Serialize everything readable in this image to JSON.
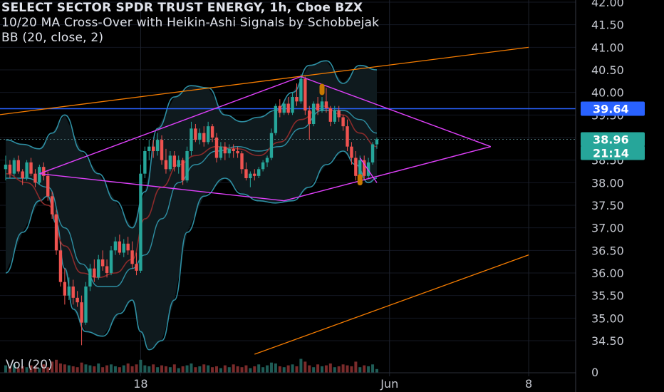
{
  "header": {
    "symbol_line": "SELECT SECTOR SPDR TRUST ENERGY, 1h, Cboe BZX",
    "indicator_line": "10/20 MA Cross-Over with Heikin-Ashi Signals by Schobbejak",
    "bb_line": "BB (20, close, 2)",
    "volume_label": "Vol (20)"
  },
  "colors": {
    "up": "#26a69a",
    "down": "#ef5350",
    "bb": "#2e8fa3",
    "ma": "#8b2a2a",
    "trendline_orange": "#f57c00",
    "diamond": "#e040fb",
    "level_line": "#2962ff",
    "price_badge": "#26a69a",
    "level_badge": "#2962ff"
  },
  "chart_data": {
    "type": "candlestick",
    "y_axis": {
      "ticks": [
        "34.50",
        "35.00",
        "35.50",
        "36.00",
        "36.50",
        "37.00",
        "37.50",
        "38.00",
        "38.50",
        "39.00",
        "39.50",
        "40.00",
        "40.50",
        "41.00",
        "41.50",
        "42.00"
      ],
      "range": [
        34.0,
        42.0
      ]
    },
    "x_axis": {
      "ticks": [
        "18",
        "Jun",
        "8"
      ]
    },
    "volume_axis_tick": "0",
    "price_badges": [
      {
        "label": "39.64",
        "value": 39.64,
        "color": "#2962ff"
      },
      {
        "label": "38.96",
        "value": 38.96,
        "color": "#26a69a"
      },
      {
        "label": "21:14",
        "value": 38.66,
        "color": "#26a69a"
      }
    ],
    "horizontal_level": 39.64,
    "last_price": 38.96,
    "candles": [
      [
        38.3,
        38.6,
        38.05,
        38.4
      ],
      [
        38.4,
        38.5,
        38.1,
        38.2
      ],
      [
        38.2,
        38.55,
        38.15,
        38.5
      ],
      [
        38.5,
        38.6,
        38.2,
        38.25
      ],
      [
        38.25,
        38.3,
        37.95,
        38.1
      ],
      [
        38.1,
        38.5,
        38.05,
        38.45
      ],
      [
        38.45,
        38.55,
        38.15,
        38.2
      ],
      [
        38.2,
        38.3,
        37.9,
        38.0
      ],
      [
        38.0,
        38.4,
        37.95,
        38.35
      ],
      [
        38.35,
        38.45,
        38.05,
        38.15
      ],
      [
        38.15,
        38.25,
        37.6,
        37.7
      ],
      [
        37.7,
        37.8,
        37.2,
        37.3
      ],
      [
        37.3,
        37.4,
        36.4,
        36.5
      ],
      [
        36.5,
        36.7,
        35.7,
        35.8
      ],
      [
        35.8,
        36.1,
        35.3,
        35.5
      ],
      [
        35.5,
        35.9,
        35.4,
        35.7
      ],
      [
        35.7,
        35.85,
        35.3,
        35.45
      ],
      [
        35.45,
        35.6,
        35.25,
        35.35
      ],
      [
        35.35,
        35.5,
        34.4,
        34.9
      ],
      [
        34.9,
        35.8,
        34.85,
        35.7
      ],
      [
        35.7,
        36.2,
        35.6,
        36.1
      ],
      [
        36.1,
        36.3,
        35.8,
        35.9
      ],
      [
        35.9,
        36.4,
        35.85,
        36.3
      ],
      [
        36.3,
        36.5,
        36.05,
        36.15
      ],
      [
        36.15,
        36.3,
        35.9,
        36.0
      ],
      [
        36.0,
        36.6,
        35.95,
        36.5
      ],
      [
        36.5,
        36.8,
        36.4,
        36.7
      ],
      [
        36.7,
        36.85,
        36.4,
        36.45
      ],
      [
        36.45,
        36.75,
        36.35,
        36.65
      ],
      [
        36.65,
        36.8,
        36.4,
        36.5
      ],
      [
        36.5,
        36.7,
        36.1,
        36.2
      ],
      [
        36.2,
        36.45,
        35.95,
        36.05
      ],
      [
        36.05,
        38.4,
        36.0,
        38.2
      ],
      [
        38.2,
        38.8,
        38.1,
        38.7
      ],
      [
        38.7,
        38.95,
        38.5,
        38.8
      ],
      [
        38.8,
        38.95,
        38.55,
        38.7
      ],
      [
        38.7,
        39.1,
        38.6,
        38.95
      ],
      [
        38.95,
        39.05,
        38.4,
        38.5
      ],
      [
        38.5,
        38.75,
        38.2,
        38.3
      ],
      [
        38.3,
        38.7,
        38.25,
        38.6
      ],
      [
        38.6,
        38.7,
        38.25,
        38.35
      ],
      [
        38.35,
        38.6,
        38.2,
        38.5
      ],
      [
        38.5,
        38.55,
        37.95,
        38.05
      ],
      [
        38.05,
        38.8,
        38.0,
        38.7
      ],
      [
        38.7,
        39.35,
        38.6,
        39.2
      ],
      [
        39.2,
        39.3,
        38.9,
        38.95
      ],
      [
        38.95,
        39.2,
        38.85,
        39.1
      ],
      [
        39.1,
        39.25,
        38.8,
        38.9
      ],
      [
        38.9,
        39.35,
        38.85,
        39.25
      ],
      [
        39.25,
        39.3,
        38.9,
        39.0
      ],
      [
        39.0,
        39.1,
        38.45,
        38.55
      ],
      [
        38.55,
        38.9,
        38.5,
        38.8
      ],
      [
        38.8,
        38.9,
        38.5,
        38.65
      ],
      [
        38.65,
        38.85,
        38.55,
        38.75
      ],
      [
        38.75,
        38.85,
        38.55,
        38.7
      ],
      [
        38.7,
        38.8,
        38.55,
        38.65
      ],
      [
        38.65,
        38.7,
        38.2,
        38.3
      ],
      [
        38.3,
        38.45,
        38.05,
        38.1
      ],
      [
        38.1,
        38.25,
        37.9,
        38.2
      ],
      [
        38.2,
        38.3,
        38.05,
        38.15
      ],
      [
        38.15,
        38.35,
        38.1,
        38.3
      ],
      [
        38.3,
        38.5,
        38.25,
        38.45
      ],
      [
        38.45,
        38.6,
        38.35,
        38.55
      ],
      [
        38.55,
        39.2,
        38.5,
        39.1
      ],
      [
        39.1,
        39.75,
        39.05,
        39.7
      ],
      [
        39.7,
        39.85,
        39.45,
        39.55
      ],
      [
        39.55,
        39.8,
        39.5,
        39.75
      ],
      [
        39.75,
        39.9,
        39.5,
        39.55
      ],
      [
        39.55,
        40.0,
        39.5,
        39.9
      ],
      [
        39.9,
        40.2,
        39.7,
        39.8
      ],
      [
        39.8,
        40.4,
        39.75,
        40.3
      ],
      [
        40.3,
        40.35,
        39.5,
        39.6
      ],
      [
        39.6,
        39.7,
        38.95,
        39.3
      ],
      [
        39.3,
        39.8,
        39.25,
        39.75
      ],
      [
        39.75,
        39.9,
        39.5,
        39.6
      ],
      [
        39.6,
        39.9,
        39.55,
        39.8
      ],
      [
        39.8,
        40.1,
        39.55,
        39.65
      ],
      [
        39.65,
        39.7,
        39.25,
        39.35
      ],
      [
        39.35,
        39.7,
        39.3,
        39.6
      ],
      [
        39.6,
        39.7,
        39.35,
        39.45
      ],
      [
        39.45,
        39.5,
        39.15,
        39.25
      ],
      [
        39.25,
        39.4,
        38.7,
        38.8
      ],
      [
        38.8,
        38.9,
        38.4,
        38.55
      ],
      [
        38.55,
        38.7,
        38.05,
        38.15
      ],
      [
        38.15,
        38.6,
        38.1,
        38.5
      ],
      [
        38.5,
        38.6,
        38.05,
        38.15
      ],
      [
        38.15,
        38.55,
        38.1,
        38.45
      ],
      [
        38.45,
        38.9,
        38.4,
        38.85
      ],
      [
        38.85,
        39.0,
        38.75,
        38.96
      ]
    ],
    "volume": [
      8,
      6,
      9,
      5,
      7,
      6,
      8,
      7,
      5,
      9,
      6,
      12,
      14,
      10,
      9,
      8,
      7,
      6,
      11,
      9,
      8,
      7,
      10,
      6,
      8,
      9,
      7,
      6,
      8,
      10,
      7,
      9,
      14,
      8,
      7,
      9,
      6,
      8,
      7,
      6,
      9,
      5,
      7,
      8,
      10,
      6,
      7,
      9,
      8,
      6,
      7,
      5,
      8,
      6,
      9,
      7,
      6,
      8,
      5,
      7,
      9,
      6,
      8,
      11,
      10,
      7,
      6,
      8,
      9,
      7,
      15,
      12,
      8,
      6,
      9,
      7,
      8,
      10,
      6,
      7,
      9,
      8,
      7,
      12,
      6,
      8,
      7,
      9,
      4
    ],
    "bollinger": {
      "upper": [
        [
          0,
          38.95
        ],
        [
          4,
          38.85
        ],
        [
          8,
          38.75
        ],
        [
          11,
          39.1
        ],
        [
          14,
          39.5
        ],
        [
          18,
          38.7
        ],
        [
          22,
          38.2
        ],
        [
          26,
          37.6
        ],
        [
          30,
          37.0
        ],
        [
          33,
          37.8
        ],
        [
          36,
          39.2
        ],
        [
          40,
          39.9
        ],
        [
          44,
          40.15
        ],
        [
          48,
          40.1
        ],
        [
          52,
          39.5
        ],
        [
          56,
          39.35
        ],
        [
          60,
          39.45
        ],
        [
          64,
          39.6
        ],
        [
          68,
          40.0
        ],
        [
          72,
          40.6
        ],
        [
          76,
          40.7
        ],
        [
          80,
          40.2
        ],
        [
          84,
          40.6
        ],
        [
          88,
          40.5
        ]
      ],
      "lower": [
        [
          0,
          36.0
        ],
        [
          4,
          36.9
        ],
        [
          8,
          37.6
        ],
        [
          10,
          37.7
        ],
        [
          12,
          37.1
        ],
        [
          14,
          36.1
        ],
        [
          16,
          35.2
        ],
        [
          19,
          34.7
        ],
        [
          23,
          34.6
        ],
        [
          27,
          35.1
        ],
        [
          30,
          35.4
        ],
        [
          32,
          34.7
        ],
        [
          34,
          34.3
        ],
        [
          37,
          34.5
        ],
        [
          40,
          35.4
        ],
        [
          43,
          36.9
        ],
        [
          47,
          37.7
        ],
        [
          52,
          38.1
        ],
        [
          56,
          37.75
        ],
        [
          60,
          37.6
        ],
        [
          64,
          37.55
        ],
        [
          68,
          37.6
        ],
        [
          72,
          37.9
        ],
        [
          76,
          38.4
        ],
        [
          80,
          38.7
        ],
        [
          83,
          38.4
        ],
        [
          86,
          38.0
        ],
        [
          88,
          38.1
        ]
      ],
      "middle": [
        [
          0,
          38.1
        ],
        [
          5,
          38.1
        ],
        [
          10,
          37.9
        ],
        [
          14,
          37.0
        ],
        [
          18,
          36.2
        ],
        [
          22,
          35.7
        ],
        [
          26,
          35.7
        ],
        [
          30,
          36.1
        ],
        [
          33,
          36.4
        ],
        [
          37,
          37.2
        ],
        [
          41,
          38.0
        ],
        [
          45,
          38.4
        ],
        [
          50,
          38.7
        ],
        [
          55,
          38.8
        ],
        [
          60,
          38.7
        ],
        [
          65,
          38.8
        ],
        [
          70,
          39.2
        ],
        [
          75,
          39.6
        ],
        [
          80,
          39.6
        ],
        [
          84,
          39.4
        ],
        [
          88,
          39.1
        ]
      ],
      "ma": [
        [
          0,
          38.2
        ],
        [
          5,
          38.0
        ],
        [
          10,
          37.5
        ],
        [
          14,
          36.6
        ],
        [
          18,
          36.0
        ],
        [
          22,
          35.9
        ],
        [
          26,
          36.0
        ],
        [
          30,
          36.3
        ],
        [
          33,
          37.2
        ],
        [
          37,
          37.9
        ],
        [
          41,
          38.4
        ],
        [
          45,
          38.6
        ],
        [
          50,
          38.8
        ],
        [
          55,
          38.75
        ],
        [
          60,
          38.6
        ],
        [
          65,
          38.9
        ],
        [
          70,
          39.4
        ],
        [
          75,
          39.7
        ],
        [
          80,
          39.5
        ],
        [
          84,
          39.1
        ],
        [
          88,
          38.8
        ]
      ]
    },
    "trendlines": [
      {
        "kind": "orange",
        "p1": [
          -2,
          39.5
        ],
        "p2": [
          124,
          41.0
        ]
      },
      {
        "kind": "orange",
        "p1": [
          59,
          34.2
        ],
        "p2": [
          124,
          36.4
        ]
      },
      {
        "kind": "diamond",
        "p1": [
          8,
          38.2
        ],
        "p2": [
          70,
          40.35
        ]
      },
      {
        "kind": "diamond",
        "p1": [
          70,
          40.35
        ],
        "p2": [
          115,
          38.8
        ]
      },
      {
        "kind": "diamond",
        "p1": [
          8,
          38.2
        ],
        "p2": [
          66,
          37.6
        ]
      },
      {
        "kind": "diamond",
        "p1": [
          66,
          37.6
        ],
        "p2": [
          115,
          38.8
        ]
      },
      {
        "kind": "diamond",
        "p1": [
          84,
          38.55
        ],
        "p2": [
          88,
          38.0
        ]
      }
    ],
    "signals": [
      {
        "index": 75,
        "value": 40.05
      },
      {
        "index": 84,
        "value": 38.05
      }
    ],
    "x_tick_positions": {
      "18": 32,
      "Jun": 91,
      "8": 124
    }
  }
}
